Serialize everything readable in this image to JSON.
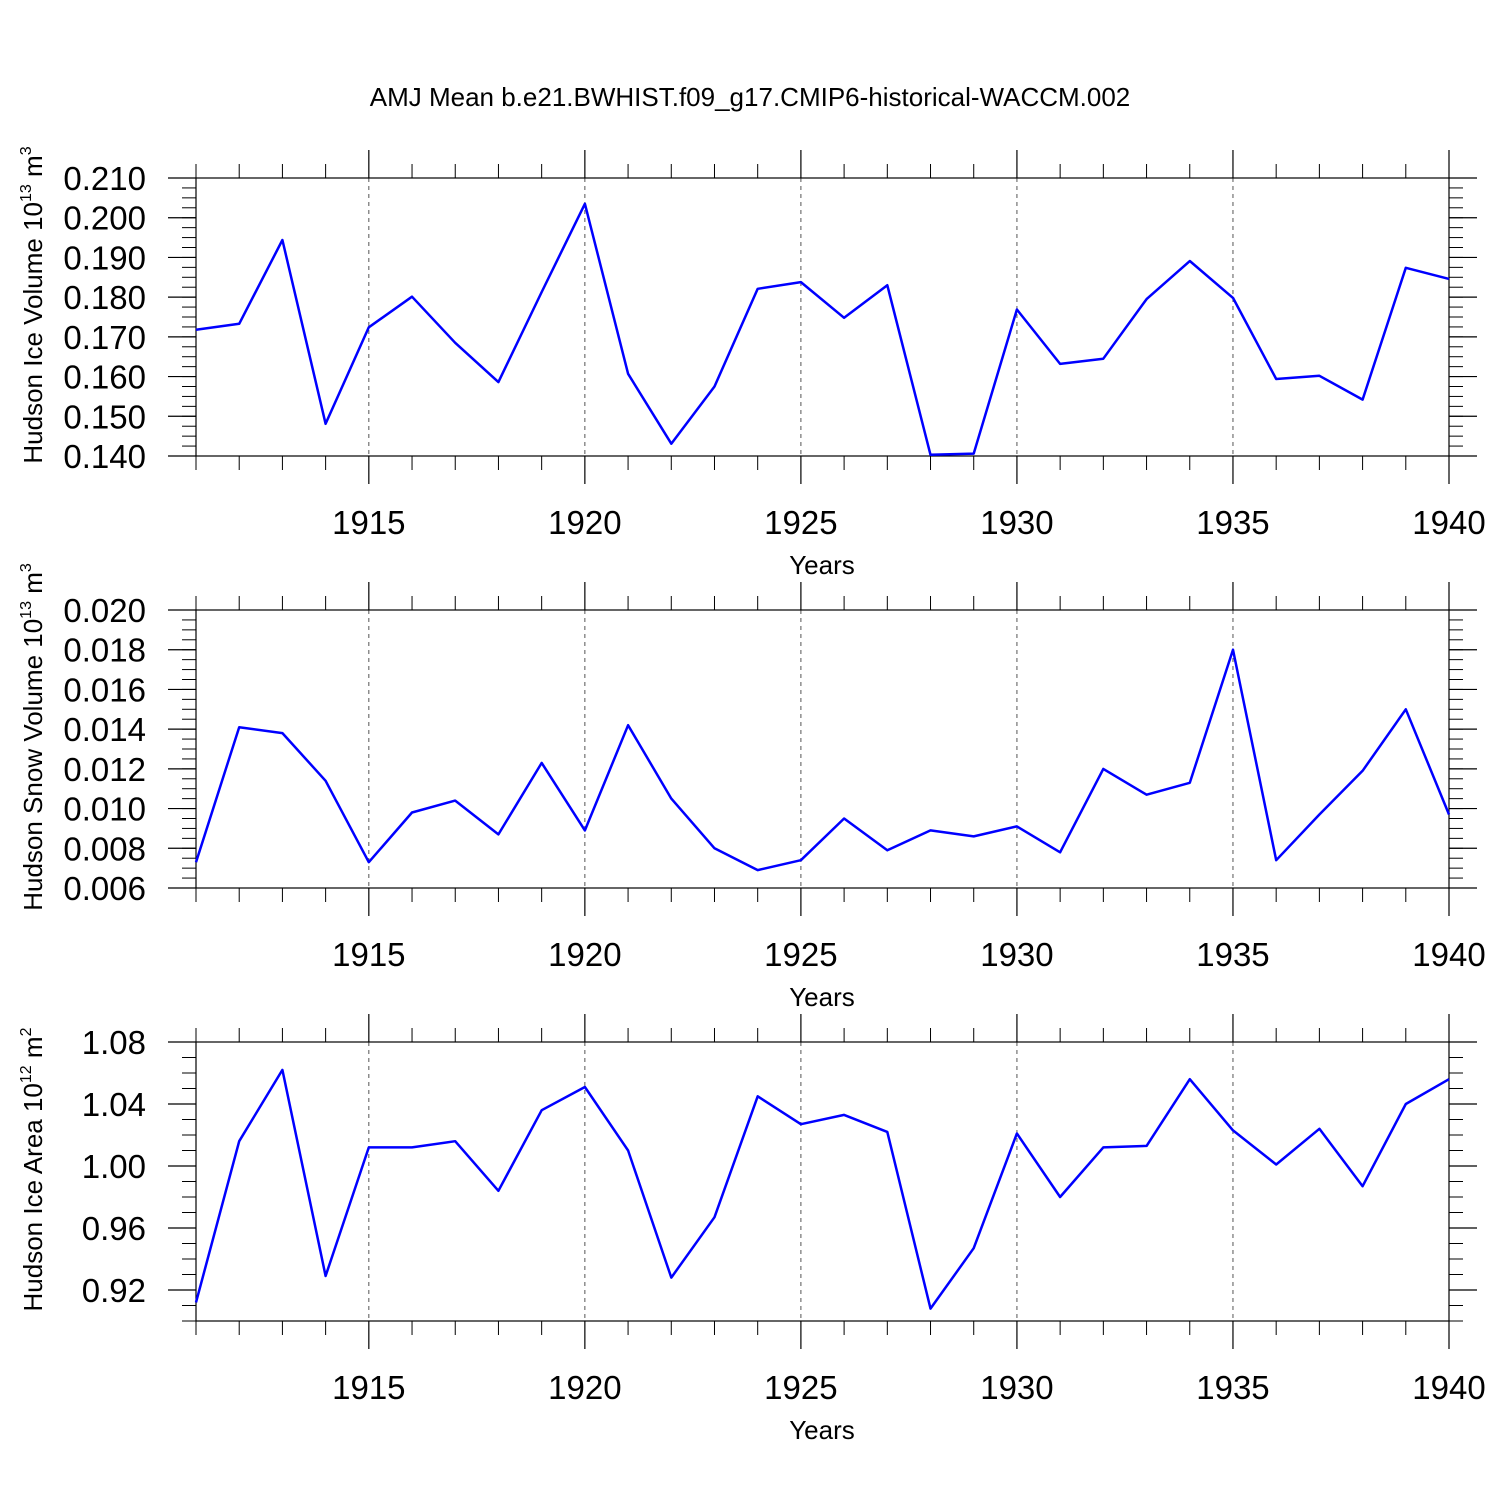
{
  "title": "AMJ Mean b.e21.BWHIST.f09_g17.CMIP6-historical-WACCM.002",
  "chart_data": [
    {
      "type": "line",
      "ylabel": "Hudson Ice Volume 10",
      "ylabel_exp": "13",
      "ylabel_unit": " m",
      "ylabel_unit_exp": "3",
      "xlabel": "Years",
      "xlim": [
        1911,
        1940
      ],
      "ylim": [
        0.14,
        0.21
      ],
      "yticks": [
        0.14,
        0.15,
        0.16,
        0.17,
        0.18,
        0.19,
        0.2,
        0.21
      ],
      "ytick_labels": [
        "0.140",
        "0.150",
        "0.160",
        "0.170",
        "0.180",
        "0.190",
        "0.200",
        "0.210"
      ],
      "yminor_step": 0.0025,
      "xticks": [
        1915,
        1920,
        1925,
        1930,
        1935,
        1940
      ],
      "xtick_labels": [
        "1915",
        "1920",
        "1925",
        "1930",
        "1935",
        "1940"
      ],
      "x": [
        1911,
        1912,
        1913,
        1914,
        1915,
        1916,
        1917,
        1918,
        1919,
        1920,
        1921,
        1922,
        1923,
        1924,
        1925,
        1926,
        1927,
        1928,
        1929,
        1930,
        1931,
        1932,
        1933,
        1934,
        1935,
        1936,
        1937,
        1938,
        1939,
        1940
      ],
      "series": [
        {
          "name": "Hudson Ice Volume",
          "color": "#0000ff",
          "values": [
            0.1718,
            0.1733,
            0.1944,
            0.1481,
            0.1724,
            0.1801,
            0.1685,
            0.1586,
            0.1813,
            0.2035,
            0.1607,
            0.1431,
            0.1575,
            0.1821,
            0.1838,
            0.1748,
            0.183,
            0.1403,
            0.1406,
            0.1769,
            0.1632,
            0.1645,
            0.1795,
            0.1891,
            0.1798,
            0.1594,
            0.1602,
            0.1542,
            0.1874,
            0.1846
          ]
        }
      ]
    },
    {
      "type": "line",
      "ylabel": "Hudson Snow Volume 10",
      "ylabel_exp": "13",
      "ylabel_unit": " m",
      "ylabel_unit_exp": "3",
      "xlabel": "Years",
      "xlim": [
        1911,
        1940
      ],
      "ylim": [
        0.006,
        0.02
      ],
      "yticks": [
        0.006,
        0.008,
        0.01,
        0.012,
        0.014,
        0.016,
        0.018,
        0.02
      ],
      "ytick_labels": [
        "0.006",
        "0.008",
        "0.010",
        "0.012",
        "0.014",
        "0.016",
        "0.018",
        "0.020"
      ],
      "yminor_step": 0.0005,
      "xticks": [
        1915,
        1920,
        1925,
        1930,
        1935,
        1940
      ],
      "xtick_labels": [
        "1915",
        "1920",
        "1925",
        "1930",
        "1935",
        "1940"
      ],
      "x": [
        1911,
        1912,
        1913,
        1914,
        1915,
        1916,
        1917,
        1918,
        1919,
        1920,
        1921,
        1922,
        1923,
        1924,
        1925,
        1926,
        1927,
        1928,
        1929,
        1930,
        1931,
        1932,
        1933,
        1934,
        1935,
        1936,
        1937,
        1938,
        1939,
        1940
      ],
      "series": [
        {
          "name": "Hudson Snow Volume",
          "color": "#0000ff",
          "values": [
            0.0073,
            0.0141,
            0.0138,
            0.0114,
            0.0073,
            0.0098,
            0.0104,
            0.0087,
            0.0123,
            0.0089,
            0.0142,
            0.0105,
            0.008,
            0.0069,
            0.0074,
            0.0095,
            0.0079,
            0.0089,
            0.0086,
            0.0091,
            0.0078,
            0.012,
            0.0107,
            0.0113,
            0.018,
            0.0074,
            0.0097,
            0.0119,
            0.015,
            0.0097
          ]
        }
      ]
    },
    {
      "type": "line",
      "ylabel": "Hudson Ice Area 10",
      "ylabel_exp": "12",
      "ylabel_unit": " m",
      "ylabel_unit_exp": "2",
      "xlabel": "Years",
      "xlim": [
        1911,
        1940
      ],
      "ylim": [
        0.9,
        1.08
      ],
      "yticks": [
        0.92,
        0.96,
        1.0,
        1.04,
        1.08
      ],
      "ytick_labels": [
        "0.92",
        "0.96",
        "1.00",
        "1.04",
        "1.08"
      ],
      "yminor_step": 0.01,
      "xticks": [
        1915,
        1920,
        1925,
        1930,
        1935,
        1940
      ],
      "xtick_labels": [
        "1915",
        "1920",
        "1925",
        "1930",
        "1935",
        "1940"
      ],
      "x": [
        1911,
        1912,
        1913,
        1914,
        1915,
        1916,
        1917,
        1918,
        1919,
        1920,
        1921,
        1922,
        1923,
        1924,
        1925,
        1926,
        1927,
        1928,
        1929,
        1930,
        1931,
        1932,
        1933,
        1934,
        1935,
        1936,
        1937,
        1938,
        1939,
        1940
      ],
      "series": [
        {
          "name": "Hudson Ice Area",
          "color": "#0000ff",
          "values": [
            0.912,
            1.016,
            1.062,
            0.929,
            1.012,
            1.012,
            1.016,
            0.984,
            1.036,
            1.051,
            1.01,
            0.928,
            0.967,
            1.045,
            1.027,
            1.033,
            1.022,
            0.908,
            0.947,
            1.021,
            0.98,
            1.012,
            1.013,
            1.056,
            1.023,
            1.001,
            1.024,
            0.987,
            1.04,
            1.056
          ]
        }
      ]
    }
  ]
}
